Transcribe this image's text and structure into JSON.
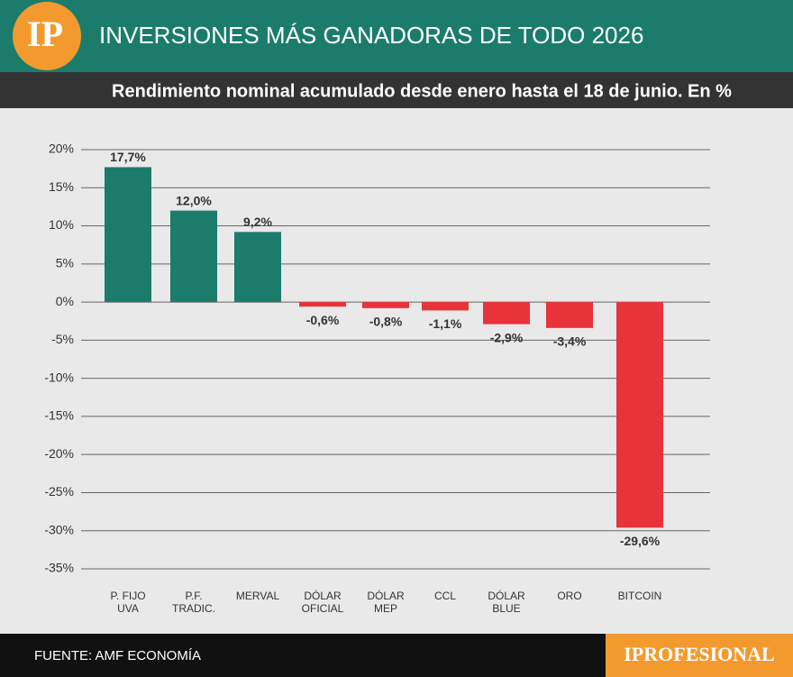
{
  "chart_data": {
    "type": "bar",
    "logo": "IP",
    "title": "INVERSIONES MÁS GANADORAS DE TODO 2026",
    "subtitle": "Rendimiento nominal acumulado desde enero hasta el 18 de junio. En %",
    "source": "FUENTE: AMF ECONOMÍA",
    "brand": "IPROFESIONAL",
    "categories": [
      "P. FIJO UVA",
      "P.F. TRADIC.",
      "MERVAL",
      "DÓLAR OFICIAL",
      "DÓLAR MEP",
      "CCL",
      "DÓLAR BLUE",
      "ORO",
      "BITCOIN"
    ],
    "values": [
      17.7,
      12.0,
      9.2,
      -0.6,
      -0.8,
      -1.1,
      -2.9,
      -3.4,
      -29.6
    ],
    "value_labels": [
      "17,7%",
      "12,0%",
      "9,2%",
      "-0,6%",
      "-0,8%",
      "-1,1%",
      "-2,9%",
      "-3,4%",
      "-29,6%"
    ],
    "colors": [
      "#1b7c6b",
      "#1b7c6b",
      "#1b7c6b",
      "#e8333a",
      "#e8333a",
      "#e8333a",
      "#e8333a",
      "#e8333a",
      "#e8333a"
    ],
    "ylim": [
      -35,
      20
    ],
    "yticks": [
      {
        "value": 20,
        "label": "20%"
      },
      {
        "value": 15,
        "label": "15%"
      },
      {
        "value": 10,
        "label": "10%"
      },
      {
        "value": 5,
        "label": "5%"
      },
      {
        "value": 0,
        "label": "0%"
      },
      {
        "value": -5,
        "label": "-5%"
      },
      {
        "value": -10,
        "label": "-10%"
      },
      {
        "value": -15,
        "label": "-15%"
      },
      {
        "value": -20,
        "label": "-20%"
      },
      {
        "value": -25,
        "label": "-25%"
      },
      {
        "value": -30,
        "label": "-30%"
      },
      {
        "value": -35,
        "label": "-35%"
      }
    ],
    "grid": true
  }
}
